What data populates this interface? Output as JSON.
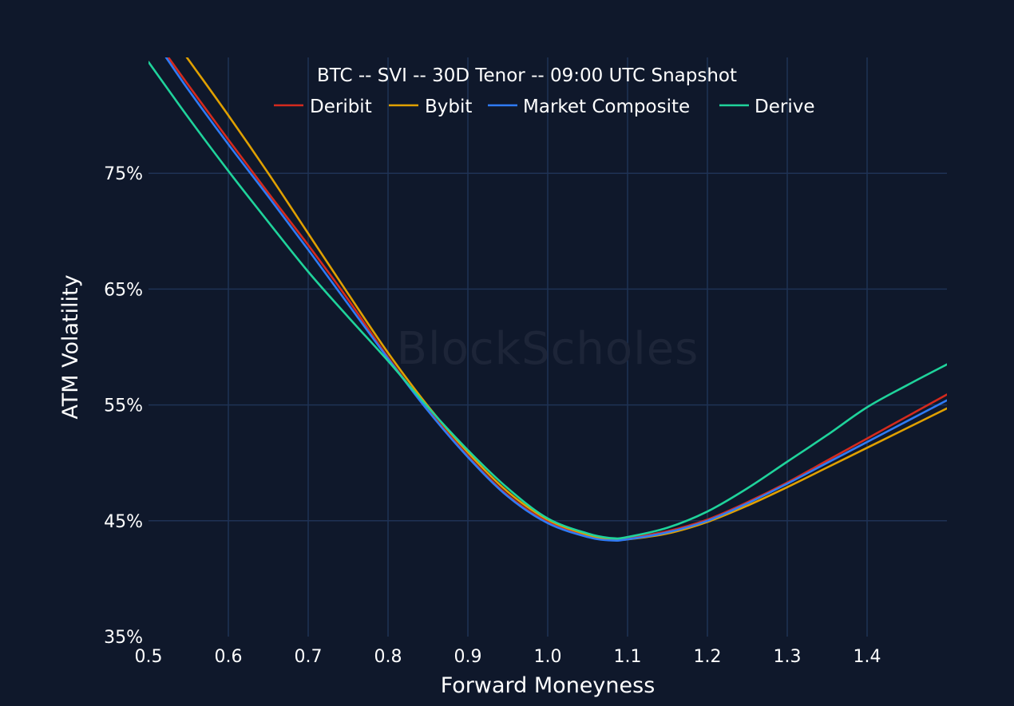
{
  "watermark": "BlockScholes",
  "chart_data": {
    "type": "line",
    "title": "BTC -- SVI -- 30D Tenor -- 09:00 UTC Snapshot",
    "xlabel": "Forward Moneyness",
    "ylabel": "ATM Volatility",
    "xlim": [
      0.5,
      1.5
    ],
    "ylim": [
      35,
      85
    ],
    "x_ticks": [
      0.5,
      0.6,
      0.7,
      0.8,
      0.9,
      1.0,
      1.1,
      1.2,
      1.3,
      1.4
    ],
    "x_tick_labels": [
      "0.5",
      "0.6",
      "0.7",
      "0.8",
      "0.9",
      "1.0",
      "1.1",
      "1.2",
      "1.3",
      "1.4"
    ],
    "y_ticks": [
      35,
      45,
      55,
      65,
      75
    ],
    "y_tick_labels": [
      "35%",
      "45%",
      "55%",
      "65%",
      "75%"
    ],
    "grid": true,
    "legend_position": "top-center",
    "series": [
      {
        "name": "Deribit",
        "color": "#d42a1e",
        "points": [
          [
            0.525,
            85.0
          ],
          [
            0.55,
            82.6
          ],
          [
            0.6,
            77.9
          ],
          [
            0.65,
            73.3
          ],
          [
            0.7,
            68.8
          ],
          [
            0.75,
            64.1
          ],
          [
            0.8,
            59.1
          ],
          [
            0.85,
            54.6
          ],
          [
            0.9,
            50.6
          ],
          [
            0.95,
            47.2
          ],
          [
            1.0,
            44.9
          ],
          [
            1.05,
            43.7
          ],
          [
            1.08,
            43.4
          ],
          [
            1.1,
            43.5
          ],
          [
            1.15,
            44.1
          ],
          [
            1.2,
            45.1
          ],
          [
            1.25,
            46.6
          ],
          [
            1.3,
            48.3
          ],
          [
            1.35,
            50.2
          ],
          [
            1.4,
            52.1
          ],
          [
            1.45,
            54.0
          ],
          [
            1.5,
            55.9
          ]
        ]
      },
      {
        "name": "Bybit",
        "color": "#e0a000",
        "points": [
          [
            0.548,
            85.0
          ],
          [
            0.6,
            80.0
          ],
          [
            0.65,
            75.0
          ],
          [
            0.7,
            69.8
          ],
          [
            0.75,
            64.6
          ],
          [
            0.8,
            59.5
          ],
          [
            0.85,
            54.9
          ],
          [
            0.9,
            50.9
          ],
          [
            0.95,
            47.5
          ],
          [
            1.0,
            45.1
          ],
          [
            1.05,
            43.8
          ],
          [
            1.08,
            43.4
          ],
          [
            1.1,
            43.4
          ],
          [
            1.15,
            43.9
          ],
          [
            1.2,
            44.9
          ],
          [
            1.25,
            46.3
          ],
          [
            1.3,
            47.9
          ],
          [
            1.35,
            49.6
          ],
          [
            1.4,
            51.3
          ],
          [
            1.45,
            53.0
          ],
          [
            1.5,
            54.7
          ]
        ]
      },
      {
        "name": "Market Composite",
        "color": "#2f7bf5",
        "points": [
          [
            0.522,
            85.0
          ],
          [
            0.55,
            82.2
          ],
          [
            0.6,
            77.5
          ],
          [
            0.65,
            73.0
          ],
          [
            0.7,
            68.4
          ],
          [
            0.75,
            63.7
          ],
          [
            0.8,
            59.0
          ],
          [
            0.85,
            54.5
          ],
          [
            0.9,
            50.5
          ],
          [
            0.95,
            47.1
          ],
          [
            1.0,
            44.8
          ],
          [
            1.05,
            43.6
          ],
          [
            1.08,
            43.3
          ],
          [
            1.1,
            43.4
          ],
          [
            1.15,
            44.0
          ],
          [
            1.2,
            45.0
          ],
          [
            1.25,
            46.5
          ],
          [
            1.3,
            48.2
          ],
          [
            1.35,
            50.0
          ],
          [
            1.4,
            51.8
          ],
          [
            1.45,
            53.6
          ],
          [
            1.5,
            55.4
          ]
        ]
      },
      {
        "name": "Derive",
        "color": "#1fd39b",
        "points": [
          [
            0.5,
            84.6
          ],
          [
            0.55,
            79.8
          ],
          [
            0.6,
            75.2
          ],
          [
            0.65,
            70.8
          ],
          [
            0.7,
            66.5
          ],
          [
            0.75,
            62.6
          ],
          [
            0.8,
            58.8
          ],
          [
            0.85,
            54.8
          ],
          [
            0.9,
            51.1
          ],
          [
            0.95,
            47.8
          ],
          [
            1.0,
            45.2
          ],
          [
            1.05,
            43.9
          ],
          [
            1.08,
            43.5
          ],
          [
            1.1,
            43.6
          ],
          [
            1.15,
            44.4
          ],
          [
            1.2,
            45.8
          ],
          [
            1.25,
            47.8
          ],
          [
            1.3,
            50.1
          ],
          [
            1.35,
            52.4
          ],
          [
            1.4,
            54.8
          ],
          [
            1.45,
            56.7
          ],
          [
            1.5,
            58.5
          ]
        ]
      }
    ]
  }
}
